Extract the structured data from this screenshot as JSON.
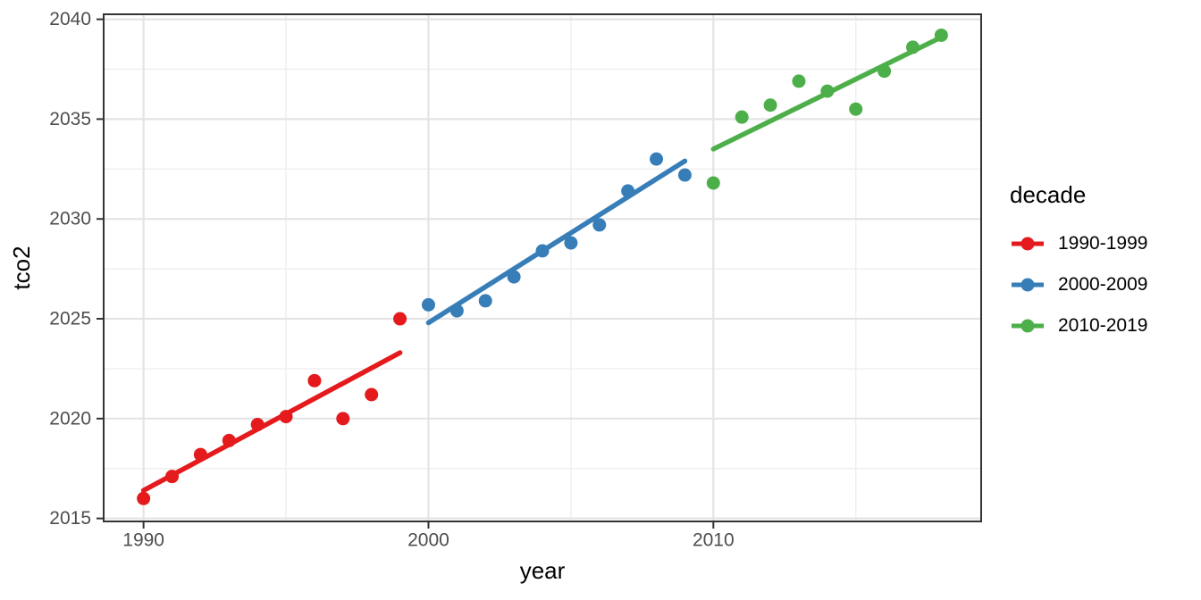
{
  "chart_data": {
    "type": "scatter",
    "title": "",
    "xlabel": "year",
    "ylabel": "tco2",
    "xlim": [
      1988.6,
      2019.4
    ],
    "ylim": [
      2014.85,
      2040.25
    ],
    "x_major_ticks": [
      1990,
      2000,
      2010
    ],
    "x_minor_ticks": [
      1995,
      2005,
      2015
    ],
    "y_major_ticks": [
      2015,
      2020,
      2025,
      2030,
      2035,
      2040
    ],
    "y_minor_ticks": [
      2017.5,
      2022.5,
      2027.5,
      2032.5,
      2037.5
    ],
    "grid": "on",
    "legend": {
      "title": "decade",
      "position": "right"
    },
    "panel_border_color": "#333333",
    "grid_major_color": "#e4e4e4",
    "grid_minor_color": "#efefef",
    "tick_color": "#333333",
    "tick_label_color": "#4d4d4d",
    "series": [
      {
        "name": "1990-1999",
        "color": "#E41A1C",
        "x": [
          1990,
          1991,
          1992,
          1993,
          1994,
          1995,
          1996,
          1997,
          1998,
          1999
        ],
        "y": [
          2016.0,
          2017.1,
          2018.2,
          2018.9,
          2019.7,
          2020.1,
          2021.9,
          2020.0,
          2021.2,
          2025.0
        ],
        "trend": {
          "x": [
            1990,
            1999
          ],
          "y": [
            2016.4,
            2023.3
          ]
        }
      },
      {
        "name": "2000-2009",
        "color": "#377EB8",
        "x": [
          2000,
          2001,
          2002,
          2003,
          2004,
          2005,
          2006,
          2007,
          2008,
          2009
        ],
        "y": [
          2025.7,
          2025.4,
          2025.9,
          2027.1,
          2028.4,
          2028.8,
          2029.7,
          2031.4,
          2033.0,
          2032.2
        ],
        "trend": {
          "x": [
            2000,
            2009
          ],
          "y": [
            2024.8,
            2032.9
          ]
        }
      },
      {
        "name": "2010-2019",
        "color": "#4DAF4A",
        "x": [
          2010,
          2011,
          2012,
          2013,
          2014,
          2015,
          2016,
          2017,
          2018
        ],
        "y": [
          2031.8,
          2035.1,
          2035.7,
          2036.9,
          2036.4,
          2035.5,
          2037.4,
          2038.6,
          2039.2
        ],
        "trend": {
          "x": [
            2010,
            2018
          ],
          "y": [
            2033.5,
            2039.1
          ]
        }
      }
    ]
  }
}
